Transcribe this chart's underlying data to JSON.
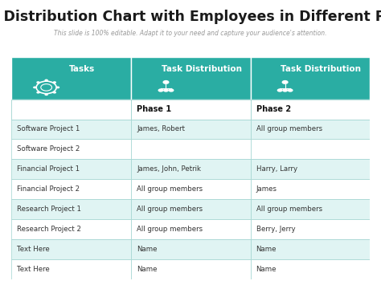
{
  "title": "Work Distribution Chart with Employees in Different Phase",
  "subtitle": "This slide is 100% editable. Adapt it to your need and capture your audience's attention.",
  "header_bg": "#2AADA3",
  "header_text_color": "#ffffff",
  "row_bg_odd": "#e0f4f3",
  "row_bg_even": "#ffffff",
  "border_color": "#a0d4d0",
  "col_headers": [
    "Tasks",
    "Task Distribution",
    "Task Distribution"
  ],
  "sub_headers": [
    "",
    "Phase 1",
    "Phase 2"
  ],
  "rows": [
    [
      "Software Project 1",
      "James, Robert",
      "All group members"
    ],
    [
      "Software Project 2",
      "",
      ""
    ],
    [
      "Financial Project 1",
      "James, John, Petrik",
      "Harry, Larry"
    ],
    [
      "Financial Project 2",
      "All group members",
      "James"
    ],
    [
      "Research Project 1",
      "All group members",
      "All group members"
    ],
    [
      "Research Project 2",
      "All group members",
      "Berry, Jerry"
    ],
    [
      "Text Here",
      "Name",
      "Name"
    ],
    [
      "Text Here",
      "Name",
      "Name"
    ]
  ],
  "title_fontsize": 12.5,
  "subtitle_fontsize": 5.5,
  "header_fontsize": 7.5,
  "cell_fontsize": 6.2,
  "sub_header_fontsize": 7
}
